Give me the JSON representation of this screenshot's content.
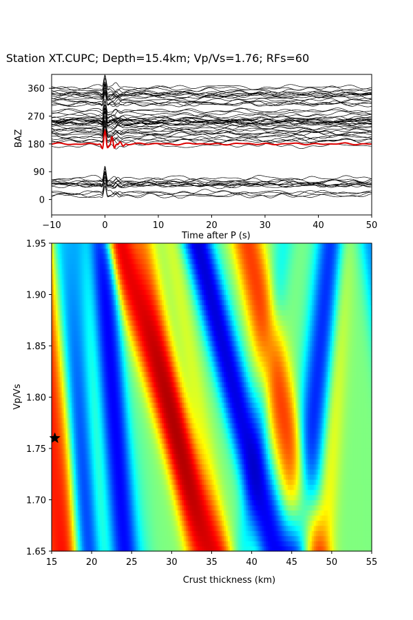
{
  "chart_data": [
    {
      "type": "line",
      "panel": "receiver-functions",
      "title": "Station XT.CUPC; Depth=15.4km; Vp/Vs=1.76; RFs=60",
      "xlabel": "Time after P (s)",
      "ylabel": "BAZ",
      "xlim": [
        -10,
        50
      ],
      "ylim": [
        -50,
        405
      ],
      "xticks": [
        "−10",
        "0",
        "10",
        "20",
        "30",
        "40",
        "50"
      ],
      "yticks": [
        "0",
        "90",
        "180",
        "270",
        "360"
      ],
      "trace_count": 60,
      "trace_color": "#000000",
      "stack_color": "#dd0000",
      "stack_baseline_baz": 180,
      "grid": false
    },
    {
      "type": "heatmap",
      "panel": "h-k-stacking",
      "xlabel": "Crust thickness (km)",
      "ylabel": "Vp/Vs",
      "xlim": [
        15,
        55
      ],
      "ylim": [
        1.65,
        1.95
      ],
      "xticks": [
        "15",
        "20",
        "25",
        "30",
        "35",
        "40",
        "45",
        "50",
        "55"
      ],
      "yticks": [
        "1.65",
        "1.70",
        "1.75",
        "1.80",
        "1.85",
        "1.90",
        "1.95"
      ],
      "colormap": "jet",
      "best_fit": {
        "thickness_km": 15.4,
        "vpvs": 1.76,
        "marker": "star"
      },
      "ridges": [
        {
          "h_at_1_65": 15.6,
          "h_at_1_95": 13.8,
          "amp": 1.0
        },
        {
          "h_at_1_65": 35.0,
          "h_at_1_95": 23.5,
          "amp": 0.95
        },
        {
          "h_at_1_65": 48.0,
          "h_at_1_95": 40.0,
          "amp": 0.55
        },
        {
          "h_at_1_65": 33.0,
          "h_at_1_95": 26.5,
          "amp": 0.4
        },
        {
          "h_at_1_65": 16.8,
          "h_at_1_95": 15.7,
          "amp": 0.35
        },
        {
          "h_at_1_65": 20.8,
          "h_at_1_95": 19.5,
          "amp": 0.35
        },
        {
          "h_at_1_65": 25.5,
          "h_at_1_95": 23.0,
          "amp": 0.3
        },
        {
          "h_at_1_65": 46.5,
          "h_at_1_95": 38.5,
          "amp": 0.3
        },
        {
          "h_at_1_65": 24.5,
          "h_at_1_95": 21.3,
          "amp": -1.0
        },
        {
          "h_at_1_65": 43.5,
          "h_at_1_95": 33.5,
          "amp": -0.65
        },
        {
          "h_at_1_65": 42.0,
          "h_at_1_95": 33.0,
          "amp": -0.45
        },
        {
          "h_at_1_65": 19.5,
          "h_at_1_95": 16.0,
          "amp": -0.55
        },
        {
          "h_at_1_65": 15.8,
          "h_at_1_95": 15.3,
          "amp": -0.4
        },
        {
          "h_at_1_65": 20.5,
          "h_at_1_95": 18.5,
          "amp": -0.4
        },
        {
          "h_at_1_65": 46.0,
          "h_at_1_95": 50.0,
          "amp": -0.75
        },
        {
          "h_at_1_65": 60.0,
          "h_at_1_95": 55.0,
          "amp": -0.45
        },
        {
          "h_at_1_65": 39.0,
          "h_at_1_95": 44.0,
          "amp": -0.2
        },
        {
          "h_at_1_65": 36.5,
          "h_at_1_95": 30.0,
          "amp": 0.15
        },
        {
          "h_at_1_65": 49.0,
          "h_at_1_95": 51.5,
          "amp": 0.25
        }
      ]
    }
  ]
}
